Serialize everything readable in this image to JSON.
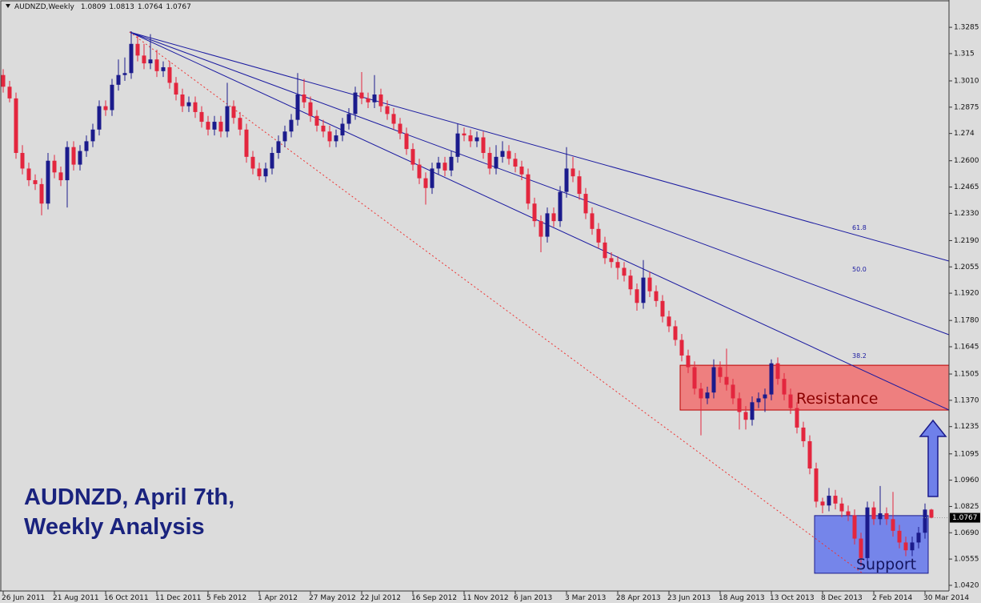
{
  "chart_data": {
    "type": "candlestick",
    "symbol": "AUDNZD,Weekly",
    "title_lines": [
      "AUDNZD, April 7th,",
      "Weekly Analysis"
    ],
    "annotations": {
      "resistance": "Resistance",
      "support": "Support"
    },
    "fan_labels": [
      "61.8",
      "50.0",
      "38.2"
    ],
    "resistance_zone": [
      1.132,
      1.155
    ],
    "support_zone": [
      1.0482,
      1.0778
    ],
    "up_color": "#1b1b8c",
    "down_color": "#e3263e",
    "grid": false,
    "ylim": [
      1.0391,
      1.3417
    ],
    "yticks": [
      1.3285,
      1.315,
      {
        "value": 1.301,
        "label": "1.3010"
      },
      1.2875,
      1.274,
      {
        "value": 1.26,
        "label": "1.2600"
      },
      1.2465,
      {
        "value": 1.233,
        "label": "1.2330"
      },
      {
        "value": 1.219,
        "label": "1.2190"
      },
      1.2055,
      {
        "value": 1.192,
        "label": "1.1920"
      },
      {
        "value": 1.178,
        "label": "1.1780"
      },
      1.1645,
      1.1505,
      {
        "value": 1.137,
        "label": "1.1370"
      },
      1.1235,
      1.1095,
      {
        "value": 1.096,
        "label": "1.0960"
      },
      1.0825,
      {
        "value": 1.069,
        "label": "1.0690"
      },
      1.0555,
      {
        "value": 1.042,
        "label": "1.0420"
      }
    ],
    "categories": [
      "26 Jun 2011",
      null,
      null,
      null,
      null,
      null,
      null,
      null,
      "21 Aug 2011",
      null,
      null,
      null,
      null,
      null,
      null,
      null,
      "16 Oct 2011",
      null,
      null,
      null,
      null,
      null,
      null,
      null,
      "11 Dec 2011",
      null,
      null,
      null,
      null,
      null,
      null,
      null,
      "5 Feb 2012",
      null,
      null,
      null,
      null,
      null,
      null,
      null,
      "1 Apr 2012",
      null,
      null,
      null,
      null,
      null,
      null,
      null,
      "27 May 2012",
      null,
      null,
      null,
      null,
      null,
      null,
      null,
      "22 Jul 2012",
      null,
      null,
      null,
      null,
      null,
      null,
      null,
      "16 Sep 2012",
      null,
      null,
      null,
      null,
      null,
      null,
      null,
      "11 Nov 2012",
      null,
      null,
      null,
      null,
      null,
      null,
      null,
      "6 Jan 2013",
      null,
      null,
      null,
      null,
      null,
      null,
      null,
      "3 Mar 2013",
      null,
      null,
      null,
      null,
      null,
      null,
      null,
      "28 Apr 2013",
      null,
      null,
      null,
      null,
      null,
      null,
      null,
      "23 Jun 2013",
      null,
      null,
      null,
      null,
      null,
      null,
      null,
      "18 Aug 2013",
      null,
      null,
      null,
      null,
      null,
      null,
      null,
      "13 Oct 2013",
      null,
      null,
      null,
      null,
      null,
      null,
      null,
      "8 Dec 2013",
      null,
      null,
      null,
      null,
      null,
      null,
      null,
      "2 Feb 2014",
      null,
      null,
      null,
      null,
      null,
      null,
      null,
      "30 Mar 2014",
      null
    ],
    "ohlc": [
      [
        1.304,
        1.307,
        1.295,
        1.298
      ],
      [
        1.298,
        1.301,
        1.29,
        1.292
      ],
      [
        1.292,
        1.295,
        1.261,
        1.264
      ],
      [
        1.264,
        1.268,
        1.253,
        1.256
      ],
      [
        1.256,
        1.259,
        1.247,
        1.25
      ],
      [
        1.25,
        1.253,
        1.245,
        1.248
      ],
      [
        1.248,
        1.251,
        1.232,
        1.238
      ],
      [
        1.238,
        1.264,
        1.235,
        1.26
      ],
      [
        1.26,
        1.263,
        1.251,
        1.254
      ],
      [
        1.254,
        1.257,
        1.247,
        1.25
      ],
      [
        1.25,
        1.27,
        1.236,
        1.267
      ],
      [
        1.267,
        1.27,
        1.255,
        1.258
      ],
      [
        1.258,
        1.268,
        1.255,
        1.265
      ],
      [
        1.265,
        1.273,
        1.262,
        1.27
      ],
      [
        1.27,
        1.279,
        1.267,
        1.276
      ],
      [
        1.276,
        1.291,
        1.273,
        1.288
      ],
      [
        1.288,
        1.291,
        1.283,
        1.286
      ],
      [
        1.286,
        1.302,
        1.283,
        1.299
      ],
      [
        1.299,
        1.312,
        1.296,
        1.304
      ],
      [
        1.304,
        1.313,
        1.301,
        1.305
      ],
      [
        1.305,
        1.3265,
        1.302,
        1.32
      ],
      [
        1.32,
        1.324,
        1.311,
        1.314
      ],
      [
        1.314,
        1.32,
        1.307,
        1.31
      ],
      [
        1.31,
        1.325,
        1.307,
        1.312
      ],
      [
        1.312,
        1.317,
        1.303,
        1.306
      ],
      [
        1.306,
        1.311,
        1.303,
        1.308
      ],
      [
        1.308,
        1.311,
        1.297,
        1.3
      ],
      [
        1.3,
        1.303,
        1.291,
        1.294
      ],
      [
        1.294,
        1.297,
        1.285,
        1.288
      ],
      [
        1.288,
        1.293,
        1.285,
        1.29
      ],
      [
        1.29,
        1.293,
        1.282,
        1.285
      ],
      [
        1.285,
        1.288,
        1.277,
        1.28
      ],
      [
        1.28,
        1.283,
        1.273,
        1.276
      ],
      [
        1.276,
        1.283,
        1.273,
        1.28
      ],
      [
        1.28,
        1.283,
        1.272,
        1.275
      ],
      [
        1.275,
        1.3,
        1.272,
        1.288
      ],
      [
        1.288,
        1.291,
        1.279,
        1.282
      ],
      [
        1.282,
        1.285,
        1.273,
        1.276
      ],
      [
        1.276,
        1.279,
        1.259,
        1.262
      ],
      [
        1.262,
        1.265,
        1.253,
        1.256
      ],
      [
        1.256,
        1.259,
        1.25,
        1.252
      ],
      [
        1.252,
        1.259,
        1.249,
        1.256
      ],
      [
        1.256,
        1.267,
        1.253,
        1.264
      ],
      [
        1.264,
        1.273,
        1.261,
        1.27
      ],
      [
        1.27,
        1.278,
        1.267,
        1.275
      ],
      [
        1.275,
        1.284,
        1.272,
        1.281
      ],
      [
        1.281,
        1.305,
        1.278,
        1.294
      ],
      [
        1.294,
        1.302,
        1.287,
        1.29
      ],
      [
        1.29,
        1.293,
        1.28,
        1.283
      ],
      [
        1.283,
        1.286,
        1.275,
        1.278
      ],
      [
        1.278,
        1.281,
        1.272,
        1.275
      ],
      [
        1.275,
        1.278,
        1.267,
        1.27
      ],
      [
        1.27,
        1.276,
        1.267,
        1.273
      ],
      [
        1.273,
        1.282,
        1.27,
        1.279
      ],
      [
        1.279,
        1.287,
        1.276,
        1.284
      ],
      [
        1.284,
        1.298,
        1.281,
        1.295
      ],
      [
        1.295,
        1.3055,
        1.289,
        1.292
      ],
      [
        1.292,
        1.295,
        1.287,
        1.29
      ],
      [
        1.29,
        1.304,
        1.287,
        1.294
      ],
      [
        1.294,
        1.297,
        1.285,
        1.288
      ],
      [
        1.288,
        1.291,
        1.281,
        1.284
      ],
      [
        1.284,
        1.287,
        1.276,
        1.279
      ],
      [
        1.279,
        1.282,
        1.271,
        1.274
      ],
      [
        1.274,
        1.277,
        1.263,
        1.266
      ],
      [
        1.266,
        1.269,
        1.255,
        1.258
      ],
      [
        1.258,
        1.261,
        1.248,
        1.251
      ],
      [
        1.251,
        1.254,
        1.2375,
        1.246
      ],
      [
        1.246,
        1.259,
        1.243,
        1.256
      ],
      [
        1.256,
        1.262,
        1.253,
        1.259
      ],
      [
        1.259,
        1.262,
        1.252,
        1.255
      ],
      [
        1.255,
        1.265,
        1.252,
        1.262
      ],
      [
        1.262,
        1.279,
        1.259,
        1.274
      ],
      [
        1.274,
        1.277,
        1.27,
        1.273
      ],
      [
        1.273,
        1.276,
        1.267,
        1.27
      ],
      [
        1.27,
        1.275,
        1.267,
        1.272
      ],
      [
        1.272,
        1.275,
        1.261,
        1.264
      ],
      [
        1.264,
        1.267,
        1.253,
        1.256
      ],
      [
        1.256,
        1.268,
        1.253,
        1.262
      ],
      [
        1.262,
        1.27,
        1.259,
        1.265
      ],
      [
        1.265,
        1.268,
        1.258,
        1.261
      ],
      [
        1.261,
        1.264,
        1.254,
        1.257
      ],
      [
        1.257,
        1.26,
        1.25,
        1.253
      ],
      [
        1.253,
        1.256,
        1.235,
        1.238
      ],
      [
        1.238,
        1.241,
        1.226,
        1.229
      ],
      [
        1.229,
        1.232,
        1.213,
        1.221
      ],
      [
        1.221,
        1.236,
        1.218,
        1.233
      ],
      [
        1.233,
        1.236,
        1.226,
        1.229
      ],
      [
        1.229,
        1.247,
        1.226,
        1.244
      ],
      [
        1.244,
        1.267,
        1.241,
        1.256
      ],
      [
        1.256,
        1.262,
        1.249,
        1.252
      ],
      [
        1.252,
        1.255,
        1.24,
        1.243
      ],
      [
        1.243,
        1.246,
        1.23,
        1.233
      ],
      [
        1.233,
        1.236,
        1.222,
        1.225
      ],
      [
        1.225,
        1.228,
        1.215,
        1.218
      ],
      [
        1.218,
        1.221,
        1.207,
        1.21
      ],
      [
        1.21,
        1.213,
        1.205,
        1.208
      ],
      [
        1.208,
        1.211,
        1.199,
        1.205
      ],
      [
        1.205,
        1.208,
        1.198,
        1.201
      ],
      [
        1.201,
        1.204,
        1.191,
        1.194
      ],
      [
        1.194,
        1.197,
        1.183,
        1.187
      ],
      [
        1.187,
        1.209,
        1.184,
        1.2
      ],
      [
        1.2,
        1.203,
        1.19,
        1.193
      ],
      [
        1.193,
        1.196,
        1.185,
        1.188
      ],
      [
        1.188,
        1.191,
        1.177,
        1.18
      ],
      [
        1.18,
        1.183,
        1.172,
        1.175
      ],
      [
        1.175,
        1.178,
        1.165,
        1.168
      ],
      [
        1.168,
        1.171,
        1.157,
        1.16
      ],
      [
        1.16,
        1.163,
        1.151,
        1.154
      ],
      [
        1.154,
        1.157,
        1.14,
        1.143
      ],
      [
        1.143,
        1.146,
        1.119,
        1.138
      ],
      [
        1.138,
        1.144,
        1.135,
        1.141
      ],
      [
        1.141,
        1.158,
        1.138,
        1.154
      ],
      [
        1.154,
        1.157,
        1.146,
        1.149
      ],
      [
        1.149,
        1.1635,
        1.142,
        1.145
      ],
      [
        1.145,
        1.148,
        1.135,
        1.138
      ],
      [
        1.138,
        1.141,
        1.122,
        1.131
      ],
      [
        1.131,
        1.134,
        1.122,
        1.127
      ],
      [
        1.127,
        1.139,
        1.124,
        1.136
      ],
      [
        1.136,
        1.141,
        1.133,
        1.138
      ],
      [
        1.138,
        1.143,
        1.131,
        1.14
      ],
      [
        1.14,
        1.158,
        1.137,
        1.156
      ],
      [
        1.156,
        1.159,
        1.145,
        1.148
      ],
      [
        1.148,
        1.151,
        1.137,
        1.14
      ],
      [
        1.14,
        1.143,
        1.13,
        1.133
      ],
      [
        1.133,
        1.136,
        1.12,
        1.123
      ],
      [
        1.123,
        1.126,
        1.113,
        1.116
      ],
      [
        1.116,
        1.119,
        1.099,
        1.102
      ],
      [
        1.102,
        1.105,
        1.082,
        1.085
      ],
      [
        1.085,
        1.087,
        1.079,
        1.083
      ],
      [
        1.083,
        1.092,
        1.08,
        1.088
      ],
      [
        1.088,
        1.091,
        1.081,
        1.084
      ],
      [
        1.084,
        1.087,
        1.077,
        1.08
      ],
      [
        1.08,
        1.083,
        1.075,
        1.078
      ],
      [
        1.078,
        1.081,
        1.063,
        1.066
      ],
      [
        1.066,
        1.069,
        1.052,
        1.056
      ],
      [
        1.056,
        1.085,
        1.053,
        1.082
      ],
      [
        1.082,
        1.085,
        1.073,
        1.076
      ],
      [
        1.076,
        1.093,
        1.073,
        1.079
      ],
      [
        1.079,
        1.082,
        1.073,
        1.076
      ],
      [
        1.076,
        1.09,
        1.067,
        1.07
      ],
      [
        1.07,
        1.073,
        1.061,
        1.064
      ],
      [
        1.064,
        1.067,
        1.057,
        1.06
      ],
      [
        1.06,
        1.067,
        1.057,
        1.064
      ],
      [
        1.064,
        1.072,
        1.061,
        1.069
      ],
      [
        1.069,
        1.084,
        1.066,
        1.0809
      ],
      [
        1.0809,
        1.0813,
        1.0764,
        1.0767
      ]
    ]
  }
}
